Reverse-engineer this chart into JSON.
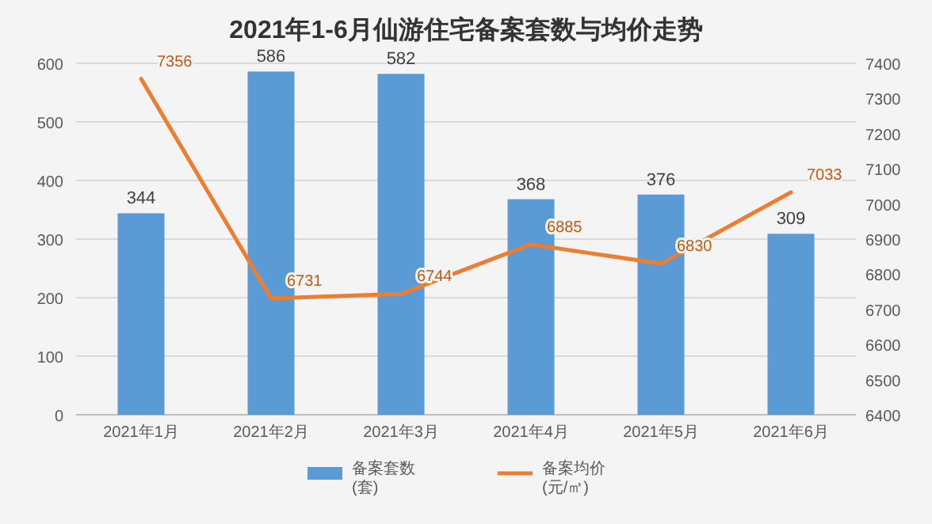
{
  "chart_data": {
    "type": "bar",
    "title": "2021年1-6月仙游住宅备案套数与均价走势",
    "categories": [
      "2021年1月",
      "2021年2月",
      "2021年3月",
      "2021年4月",
      "2021年5月",
      "2021年6月"
    ],
    "series": [
      {
        "name": "备案套数(套)",
        "color": "#5b9bd5",
        "values": [
          344,
          586,
          582,
          368,
          376,
          309
        ]
      },
      {
        "name": "备案均价(元/㎡)",
        "type": "line",
        "axis": "y2",
        "color": "#ed7d31",
        "values": [
          7356,
          6731,
          6744,
          6885,
          6830,
          7033
        ]
      }
    ],
    "ylim": [
      0,
      600
    ],
    "yticks": [
      0,
      100,
      200,
      300,
      400,
      500,
      600
    ],
    "y2lim": [
      6400,
      7400
    ],
    "y2ticks": [
      6400,
      6500,
      6600,
      6700,
      6800,
      6900,
      7000,
      7100,
      7200,
      7300,
      7400
    ],
    "grid": "y",
    "legend": "bottom",
    "data_labels": true,
    "line_style": "solid",
    "marker": "none"
  }
}
